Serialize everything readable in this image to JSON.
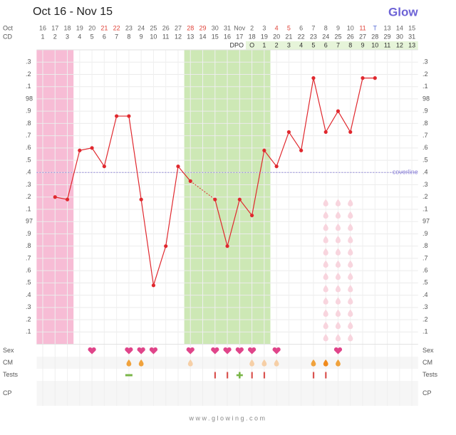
{
  "header": {
    "title": "Oct 16 - Nov 15",
    "logo": "Glow"
  },
  "chart_data": {
    "type": "line",
    "row_labels": {
      "month": "Oct",
      "cd": "CD",
      "dpo": "DPO"
    },
    "dates": [
      "16",
      "17",
      "18",
      "19",
      "20",
      "21",
      "22",
      "23",
      "24",
      "25",
      "26",
      "27",
      "28",
      "29",
      "30",
      "31",
      "Nov",
      "2",
      "3",
      "4",
      "5",
      "6",
      "7",
      "8",
      "9",
      "10",
      "11",
      "T",
      "13",
      "14",
      "15"
    ],
    "date_colors": [
      "#666",
      "#666",
      "#666",
      "#666",
      "#666",
      "#e0443a",
      "#e0443a",
      "#666",
      "#666",
      "#666",
      "#666",
      "#666",
      "#e0443a",
      "#e0443a",
      "#666",
      "#666",
      "#666",
      "#666",
      "#666",
      "#e0443a",
      "#e0443a",
      "#666",
      "#666",
      "#666",
      "#666",
      "#666",
      "#e0443a",
      "#5b6fd6",
      "#666",
      "#666",
      "#666"
    ],
    "categories": [
      1,
      2,
      3,
      4,
      5,
      6,
      7,
      8,
      9,
      10,
      11,
      12,
      13,
      14,
      15,
      16,
      17,
      18,
      19,
      20,
      21,
      22,
      23,
      24,
      25,
      26,
      27,
      28,
      29,
      30,
      31
    ],
    "dpo": [
      null,
      null,
      null,
      null,
      null,
      null,
      null,
      null,
      null,
      null,
      null,
      null,
      null,
      null,
      null,
      null,
      null,
      "O",
      1,
      2,
      3,
      4,
      5,
      6,
      7,
      8,
      9,
      10,
      11,
      12,
      13
    ],
    "dpo_color": "#e6f4d9",
    "values": [
      null,
      97.2,
      97.18,
      97.58,
      97.6,
      97.45,
      97.86,
      97.86,
      97.18,
      96.48,
      96.8,
      97.45,
      97.33,
      null,
      97.18,
      96.8,
      97.18,
      97.05,
      97.58,
      97.45,
      97.73,
      97.58,
      98.17,
      97.73,
      97.9,
      97.73,
      98.17,
      98.17,
      null,
      null,
      null
    ],
    "color": "#e0282e",
    "ylim": [
      96.0,
      98.4
    ],
    "yticks": [
      {
        "value": 98.3,
        "label": ".3"
      },
      {
        "value": 98.2,
        "label": ".2"
      },
      {
        "value": 98.1,
        "label": ".1"
      },
      98,
      {
        "value": 97.9,
        "label": ".9"
      },
      {
        "value": 97.8,
        "label": ".8"
      },
      {
        "value": 97.7,
        "label": ".7"
      },
      {
        "value": 97.6,
        "label": ".6"
      },
      {
        "value": 97.5,
        "label": ".5"
      },
      {
        "value": 97.4,
        "label": ".4"
      },
      {
        "value": 97.3,
        "label": ".3"
      },
      {
        "value": 97.2,
        "label": ".2"
      },
      {
        "value": 97.1,
        "label": ".1"
      },
      97,
      {
        "value": 96.9,
        "label": ".9"
      },
      {
        "value": 96.8,
        "label": ".8"
      },
      {
        "value": 96.7,
        "label": ".7"
      },
      {
        "value": 96.6,
        "label": ".6"
      },
      {
        "value": 96.5,
        "label": ".5"
      },
      {
        "value": 96.4,
        "label": ".4"
      },
      {
        "value": 96.3,
        "label": ".3"
      },
      {
        "value": 96.2,
        "label": ".2"
      },
      {
        "value": 96.1,
        "label": ".1"
      }
    ],
    "grid": true,
    "coverline": {
      "value": 97.4,
      "label": "coverline",
      "color": "#8f86d9"
    },
    "period": {
      "start": 1,
      "end": 3,
      "color": "#f7bcd5"
    },
    "fertile": {
      "start": 13,
      "end": 19,
      "color": "#cde8b5"
    },
    "predicted": {
      "start": 24,
      "end": 26,
      "color": "#f8d5de"
    },
    "rows": {
      "sex": {
        "label": "Sex",
        "color": "#e0458a",
        "days": [
          5,
          8,
          9,
          10,
          13,
          15,
          16,
          17,
          18,
          20,
          25
        ]
      },
      "cm": {
        "label": "CM",
        "items": [
          {
            "cd": 8,
            "color": "#f0a23c"
          },
          {
            "cd": 9,
            "color": "#f0a23c"
          },
          {
            "cd": 13,
            "color": "#f6cfa6"
          },
          {
            "cd": 18,
            "color": "#f6cfa6"
          },
          {
            "cd": 19,
            "color": "#f6cfa6"
          },
          {
            "cd": 20,
            "color": "#f6cfa6"
          },
          {
            "cd": 23,
            "color": "#f0a23c"
          },
          {
            "cd": 24,
            "color": "#f08a1c"
          },
          {
            "cd": 25,
            "color": "#f0a23c"
          }
        ]
      },
      "tests": {
        "label": "Tests",
        "items": [
          {
            "cd": 8,
            "mark": "minus",
            "color": "#7ab648"
          },
          {
            "cd": 15,
            "mark": "bar",
            "color": "#d9534f"
          },
          {
            "cd": 16,
            "mark": "bar",
            "color": "#d9534f"
          },
          {
            "cd": 17,
            "mark": "plus",
            "color": "#7ab648"
          },
          {
            "cd": 18,
            "mark": "bar",
            "color": "#d9534f"
          },
          {
            "cd": 19,
            "mark": "bar",
            "color": "#d9534f"
          },
          {
            "cd": 23,
            "mark": "bar",
            "color": "#d9534f"
          },
          {
            "cd": 24,
            "mark": "bar",
            "color": "#d9534f"
          }
        ]
      },
      "cp": {
        "label": "CP",
        "items": []
      }
    }
  },
  "footer": "www.glowing.com"
}
